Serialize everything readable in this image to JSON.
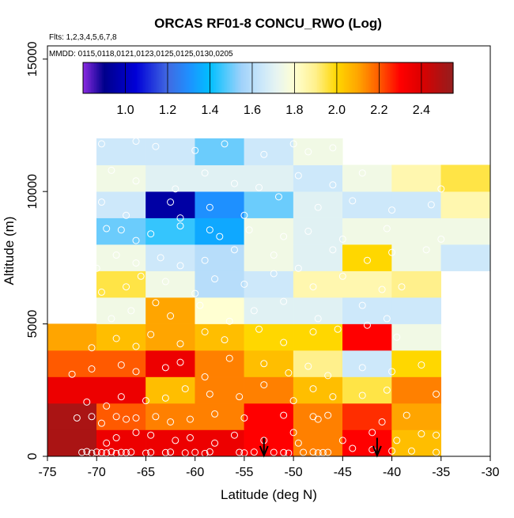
{
  "chart_data": {
    "type": "heatmap",
    "title": "ORCAS RF01-8 CONCU_RWO (Log)",
    "flights_label": "Flts: 1,2,3,4,5,6,7,8",
    "dates_label": "MMDD: 0115,0118,0121,0123,0125,0125,0130,0205",
    "xlabel": "Latitude (deg N)",
    "ylabel": "Altitude (m)",
    "xlim": [
      -75,
      -30
    ],
    "ylim": [
      0,
      15500
    ],
    "xticks": [
      -75,
      -70,
      -65,
      -60,
      -55,
      -50,
      -45,
      -40,
      -35,
      -30
    ],
    "xtick_labels": [
      "-75",
      "-70",
      "-65",
      "-60",
      "-55",
      "-50",
      "-45",
      "-40",
      "-35",
      "-30"
    ],
    "yticks": [
      0,
      5000,
      10000,
      15000
    ],
    "ytick_labels": [
      "0",
      "5000",
      "10000",
      "15000"
    ],
    "colorbar": {
      "min": 0.8,
      "max": 2.55,
      "ticks": [
        1.0,
        1.2,
        1.4,
        1.6,
        1.8,
        2.0,
        2.2,
        2.4
      ],
      "tick_labels": [
        "1.0",
        "1.2",
        "1.4",
        "1.6",
        "1.8",
        "2.0",
        "2.2",
        "2.4"
      ]
    },
    "cell_width_deg": 5,
    "cell_height_m": 1000,
    "rows": [
      {
        "alt": 0,
        "x0": -75,
        "values": [
          2.5,
          2.35,
          2.35,
          2.35,
          2.3,
          2.15,
          2.3,
          2.05
        ]
      },
      {
        "alt": 1000,
        "x0": -75,
        "values": [
          2.5,
          2.2,
          2.15,
          2.15,
          2.3,
          2.15,
          2.25,
          2.1
        ]
      },
      {
        "alt": 2000,
        "x0": -75,
        "values": [
          2.35,
          2.35,
          2.05,
          2.15,
          2.15,
          2.05,
          1.95,
          2.15
        ]
      },
      {
        "alt": 3000,
        "x0": -75,
        "values": [
          2.2,
          2.2,
          2.35,
          2.15,
          2.05,
          1.9,
          1.65,
          2.0
        ]
      },
      {
        "alt": 4000,
        "x0": -75,
        "values": [
          2.1,
          2.05,
          2.1,
          2.05,
          2.0,
          2.0,
          2.3,
          1.75
        ]
      },
      {
        "alt": 5000,
        "x0": -70,
        "values": [
          1.75,
          2.1,
          1.8,
          1.7,
          1.7,
          1.65,
          1.65
        ]
      },
      {
        "alt": 6000,
        "x0": -70,
        "values": [
          1.95,
          1.75,
          1.6,
          1.65,
          1.85,
          1.85,
          1.9
        ]
      },
      {
        "alt": 7000,
        "x0": -70,
        "values": [
          1.75,
          1.65,
          1.6,
          1.75,
          1.7,
          2.0,
          1.75,
          1.65
        ]
      },
      {
        "alt": 8000,
        "x0": -70,
        "values": [
          1.5,
          1.45,
          1.35,
          1.75,
          1.7,
          1.75,
          1.75,
          1.75
        ]
      },
      {
        "alt": 9000,
        "x0": -70,
        "values": [
          1.65,
          0.95,
          1.3,
          1.5,
          1.7,
          1.65,
          1.65,
          1.85
        ]
      },
      {
        "alt": 10000,
        "x0": -70,
        "values": [
          1.75,
          1.7,
          1.7,
          1.7,
          1.65,
          1.75,
          1.85,
          1.95
        ]
      },
      {
        "alt": 11000,
        "x0": -70,
        "values": [
          1.65,
          1.65,
          1.5,
          1.65,
          1.75
        ]
      }
    ],
    "arrows_at_latitude": [
      -53,
      -41.5
    ],
    "sample_points": [
      [
        -71.5,
        150
      ],
      [
        -71,
        180
      ],
      [
        -70.5,
        120
      ],
      [
        -70,
        160
      ],
      [
        -69.5,
        140
      ],
      [
        -69,
        130
      ],
      [
        -68.5,
        170
      ],
      [
        -68,
        110
      ],
      [
        -67.5,
        150
      ],
      [
        -67,
        140
      ],
      [
        -66.5,
        160
      ],
      [
        -65,
        120
      ],
      [
        -64.5,
        150
      ],
      [
        -63,
        140
      ],
      [
        -62.5,
        160
      ],
      [
        -61,
        130
      ],
      [
        -60,
        150
      ],
      [
        -59,
        110
      ],
      [
        -58.5,
        170
      ],
      [
        -55.5,
        150
      ],
      [
        -55,
        130
      ],
      [
        -54,
        160
      ],
      [
        -52,
        150
      ],
      [
        -51,
        140
      ],
      [
        -50.5,
        120
      ],
      [
        -49,
        150
      ],
      [
        -48,
        160
      ],
      [
        -47.5,
        130
      ],
      [
        -47,
        140
      ],
      [
        -46.5,
        150
      ],
      [
        -44,
        300
      ],
      [
        -42,
        250
      ],
      [
        -40,
        200
      ],
      [
        -38,
        200
      ],
      [
        -35.5,
        150
      ],
      [
        -69,
        500
      ],
      [
        -68,
        700
      ],
      [
        -66,
        900
      ],
      [
        -64.5,
        800
      ],
      [
        -62,
        600
      ],
      [
        -60.5,
        700
      ],
      [
        -58,
        500
      ],
      [
        -56,
        800
      ],
      [
        -53,
        600
      ],
      [
        -50,
        900
      ],
      [
        -49.5,
        500
      ],
      [
        -45,
        600
      ],
      [
        -42,
        900
      ],
      [
        -39.5,
        600
      ],
      [
        -37,
        850
      ],
      [
        -35.5,
        800
      ],
      [
        -72,
        1450
      ],
      [
        -70.5,
        1500
      ],
      [
        -69.5,
        1250
      ],
      [
        -68,
        1500
      ],
      [
        -67,
        1400
      ],
      [
        -66,
        1450
      ],
      [
        -64,
        1500
      ],
      [
        -62.5,
        1300
      ],
      [
        -60.5,
        1400
      ],
      [
        -58,
        1600
      ],
      [
        -55,
        1450
      ],
      [
        -51,
        1550
      ],
      [
        -48,
        1500
      ],
      [
        -47.5,
        1400
      ],
      [
        -46.5,
        1550
      ],
      [
        -41,
        1300
      ],
      [
        -38.5,
        1550
      ],
      [
        -71,
        2050
      ],
      [
        -69,
        1900
      ],
      [
        -67.5,
        2250
      ],
      [
        -65,
        2100
      ],
      [
        -63,
        2200
      ],
      [
        -61,
        2550
      ],
      [
        -58.5,
        2350
      ],
      [
        -55.5,
        2250
      ],
      [
        -53,
        2700
      ],
      [
        -50,
        2100
      ],
      [
        -48,
        2550
      ],
      [
        -46,
        2250
      ],
      [
        -43,
        2300
      ],
      [
        -40.5,
        2500
      ],
      [
        -35.5,
        2350
      ],
      [
        -72.5,
        3100
      ],
      [
        -70.5,
        3300
      ],
      [
        -67.5,
        3450
      ],
      [
        -66,
        3200
      ],
      [
        -63,
        3350
      ],
      [
        -61.5,
        3550
      ],
      [
        -59,
        3000
      ],
      [
        -56.5,
        3700
      ],
      [
        -53,
        3500
      ],
      [
        -50.5,
        3150
      ],
      [
        -48.5,
        3400
      ],
      [
        -46.5,
        3050
      ],
      [
        -43,
        3350
      ],
      [
        -40,
        3200
      ],
      [
        -37,
        3450
      ],
      [
        -70.5,
        4100
      ],
      [
        -68,
        4450
      ],
      [
        -66,
        4150
      ],
      [
        -64.5,
        4600
      ],
      [
        -61.5,
        4250
      ],
      [
        -59,
        4700
      ],
      [
        -57,
        4400
      ],
      [
        -53.5,
        4800
      ],
      [
        -51,
        4300
      ],
      [
        -48,
        4700
      ],
      [
        -45.5,
        4800
      ],
      [
        -42.5,
        4950
      ],
      [
        -39.5,
        4500
      ],
      [
        -68.5,
        5200
      ],
      [
        -66.5,
        5500
      ],
      [
        -64,
        5800
      ],
      [
        -62.5,
        5300
      ],
      [
        -59.5,
        5700
      ],
      [
        -56.5,
        5100
      ],
      [
        -54,
        5500
      ],
      [
        -51,
        5850
      ],
      [
        -47.5,
        5200
      ],
      [
        -43,
        5700
      ],
      [
        -40.5,
        5200
      ],
      [
        -69.5,
        6200
      ],
      [
        -67,
        6400
      ],
      [
        -65.5,
        6800
      ],
      [
        -63,
        6600
      ],
      [
        -60,
        6150
      ],
      [
        -58,
        6700
      ],
      [
        -55,
        6500
      ],
      [
        -52,
        6900
      ],
      [
        -48,
        6400
      ],
      [
        -45,
        6800
      ],
      [
        -41,
        6300
      ],
      [
        -39,
        6400
      ],
      [
        -70,
        7100
      ],
      [
        -68,
        7600
      ],
      [
        -66,
        7300
      ],
      [
        -63.5,
        7500
      ],
      [
        -61.5,
        7200
      ],
      [
        -59,
        7400
      ],
      [
        -56,
        7800
      ],
      [
        -52,
        7600
      ],
      [
        -49.5,
        7100
      ],
      [
        -46,
        7800
      ],
      [
        -42.5,
        7400
      ],
      [
        -40,
        7700
      ],
      [
        -36.5,
        7800
      ],
      [
        -71,
        8550
      ],
      [
        -69,
        8600
      ],
      [
        -67.5,
        8550
      ],
      [
        -66,
        8150
      ],
      [
        -64.5,
        8400
      ],
      [
        -61.5,
        8700
      ],
      [
        -58.5,
        8550
      ],
      [
        -57.5,
        8300
      ],
      [
        -54.5,
        8550
      ],
      [
        -51,
        8300
      ],
      [
        -48.5,
        8500
      ],
      [
        -45,
        8200
      ],
      [
        -40.5,
        8600
      ],
      [
        -35,
        8200
      ],
      [
        -69.5,
        9600
      ],
      [
        -67,
        9100
      ],
      [
        -62.5,
        9600
      ],
      [
        -61.5,
        9000
      ],
      [
        -58.5,
        9400
      ],
      [
        -55,
        9100
      ],
      [
        -51.5,
        9800
      ],
      [
        -47.5,
        9400
      ],
      [
        -44,
        9650
      ],
      [
        -40,
        9300
      ],
      [
        -36,
        9500
      ],
      [
        -68.5,
        10800
      ],
      [
        -66,
        10400
      ],
      [
        -62,
        10100
      ],
      [
        -59,
        10700
      ],
      [
        -56,
        10300
      ],
      [
        -53.5,
        10150
      ],
      [
        -49.5,
        10600
      ],
      [
        -46,
        10250
      ],
      [
        -43,
        10700
      ],
      [
        -35,
        10100
      ],
      [
        -69.5,
        11800
      ],
      [
        -66,
        11900
      ],
      [
        -64,
        11700
      ],
      [
        -60,
        11550
      ],
      [
        -57,
        11800
      ],
      [
        -53,
        11400
      ],
      [
        -50,
        11800
      ],
      [
        -48.5,
        11500
      ],
      [
        -46,
        11650
      ]
    ]
  }
}
